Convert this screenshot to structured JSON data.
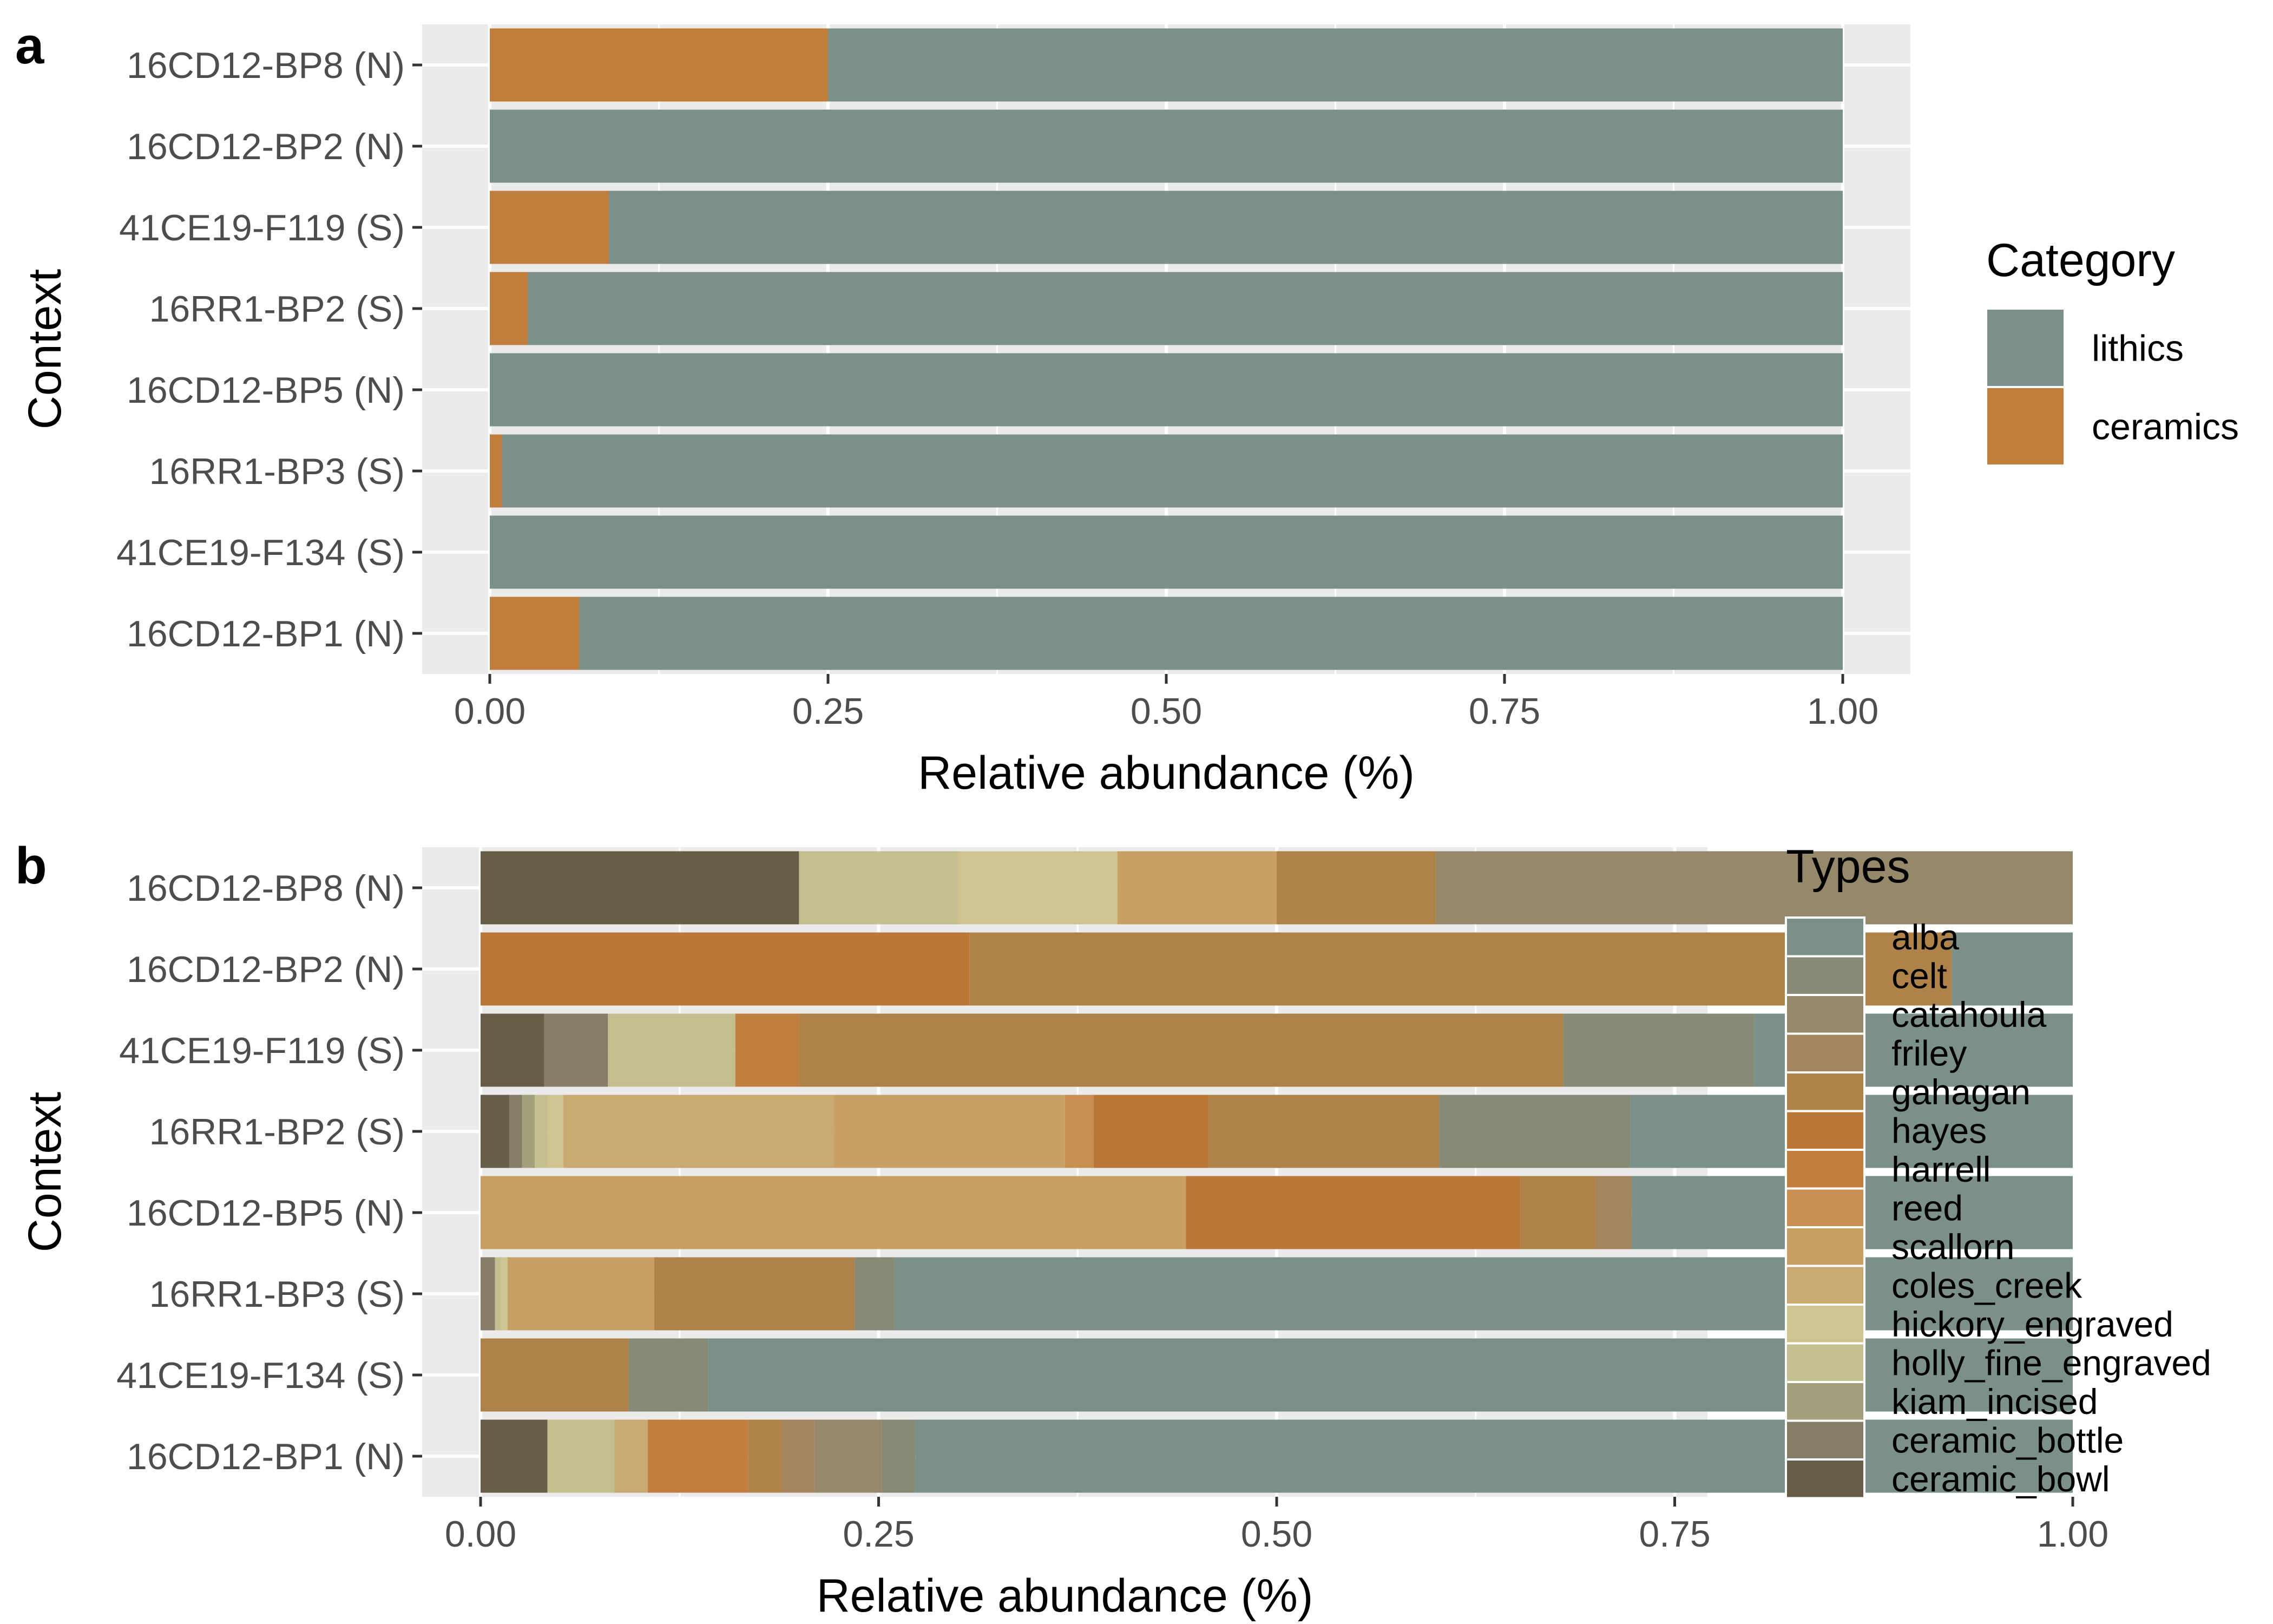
{
  "chart_data": [
    {
      "panel_label": "a",
      "type": "bar",
      "orientation": "horizontal",
      "stacked": true,
      "categories": [
        "16CD12-BP8 (N)",
        "16CD12-BP2 (N)",
        "41CE19-F119 (S)",
        "16RR1-BP2 (S)",
        "16CD12-BP5 (N)",
        "16RR1-BP3 (S)",
        "41CE19-F134 (S)",
        "16CD12-BP1 (N)"
      ],
      "series": [
        {
          "name": "ceramics",
          "color": "#c17d3c",
          "values": [
            0.25,
            0.0,
            0.088,
            0.028,
            0.0,
            0.009,
            0.0,
            0.066
          ]
        },
        {
          "name": "lithics",
          "color": "#7a9088",
          "values": [
            0.75,
            1.0,
            0.912,
            0.972,
            1.0,
            0.991,
            1.0,
            0.934
          ]
        }
      ],
      "xlabel": "Relative abundance (%)",
      "ylabel": "Context",
      "xlim": [
        0,
        1
      ],
      "xticks": [
        "0.00",
        "0.25",
        "0.50",
        "0.75",
        "1.00"
      ],
      "legend_title": "Category",
      "legend_entries": [
        "lithics",
        "ceramics"
      ],
      "legend_position": "right",
      "grid": true
    },
    {
      "panel_label": "b",
      "type": "bar",
      "orientation": "horizontal",
      "stacked": true,
      "categories": [
        "16CD12-BP8 (N)",
        "16CD12-BP2 (N)",
        "41CE19-F119 (S)",
        "16RR1-BP2 (S)",
        "16CD12-BP5 (N)",
        "16RR1-BP3 (S)",
        "41CE19-F134 (S)",
        "16CD12-BP1 (N)"
      ],
      "series": [
        {
          "name": "ceramic_bowl",
          "color": "#685e48",
          "values": [
            0.2,
            0,
            0.04,
            0.018,
            0,
            0,
            0,
            0.042
          ]
        },
        {
          "name": "ceramic_bottle",
          "color": "#857d66",
          "values": [
            0,
            0,
            0.04,
            0.008,
            0,
            0.009,
            0,
            0
          ]
        },
        {
          "name": "kiam_incised",
          "color": "#a39f7a",
          "values": [
            0,
            0,
            0,
            0.008,
            0,
            0,
            0,
            0
          ]
        },
        {
          "name": "holly_fine_engraved",
          "color": "#c4bf8e",
          "values": [
            0.1,
            0,
            0.08,
            0.008,
            0,
            0.004,
            0,
            0.042
          ]
        },
        {
          "name": "hickory_engraved",
          "color": "#cfc38f",
          "values": [
            0.1,
            0,
            0,
            0.01,
            0,
            0.004,
            0,
            0
          ]
        },
        {
          "name": "coles_creek",
          "color": "#c9a872",
          "values": [
            0,
            0,
            0,
            0.17,
            0,
            0,
            0,
            0.021
          ]
        },
        {
          "name": "scallorn",
          "color": "#c8a064",
          "values": [
            0.1,
            0,
            0,
            0.145,
            0.443,
            0.092,
            0,
            0
          ]
        },
        {
          "name": "reed",
          "color": "#c78f50",
          "values": [
            0,
            0,
            0,
            0.018,
            0,
            0,
            0,
            0
          ]
        },
        {
          "name": "harrell",
          "color": "#c27e3f",
          "values": [
            0,
            0,
            0.04,
            0,
            0,
            0,
            0,
            0.063
          ]
        },
        {
          "name": "hayes",
          "color": "#bb7838",
          "values": [
            0,
            0.307,
            0,
            0.072,
            0.21,
            0,
            0,
            0
          ]
        },
        {
          "name": "gahagan",
          "color": "#ae8249",
          "values": [
            0.1,
            0.617,
            0.48,
            0.145,
            0.047,
            0.126,
            0.093,
            0.021
          ]
        },
        {
          "name": "friley",
          "color": "#a3865f",
          "values": [
            0,
            0,
            0,
            0,
            0.023,
            0,
            0,
            0.021
          ]
        },
        {
          "name": "catahoula",
          "color": "#95886b",
          "values": [
            0.4,
            0,
            0,
            0,
            0,
            0,
            0,
            0.042
          ]
        },
        {
          "name": "celt",
          "color": "#878b76",
          "values": [
            0,
            0,
            0.12,
            0.12,
            0,
            0.025,
            0.05,
            0.021
          ]
        },
        {
          "name": "alba",
          "color": "#7a9088",
          "values": [
            0,
            0.076,
            0.2,
            0.278,
            0.277,
            0.74,
            0.857,
            0.727
          ]
        }
      ],
      "xlabel": "Relative abundance (%)",
      "ylabel": "Context",
      "xlim": [
        0,
        1
      ],
      "xticks": [
        "0.00",
        "0.25",
        "0.50",
        "0.75",
        "1.00"
      ],
      "legend_title": "Types",
      "legend_entries": [
        "alba",
        "celt",
        "catahoula",
        "friley",
        "gahagan",
        "hayes",
        "harrell",
        "reed",
        "scallorn",
        "coles_creek",
        "hickory_engraved",
        "holly_fine_engraved",
        "kiam_incised",
        "ceramic_bottle",
        "ceramic_bowl"
      ],
      "legend_position": "right",
      "grid": true
    }
  ]
}
